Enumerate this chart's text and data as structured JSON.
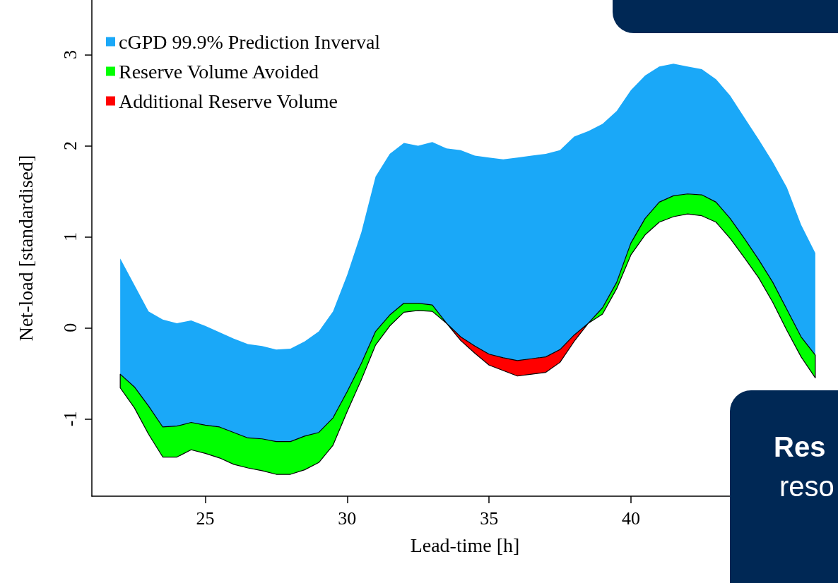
{
  "chart_data": {
    "type": "area",
    "xlabel": "Lead-time [h]",
    "ylabel": "Net-load [standardised]",
    "x": [
      22,
      22.5,
      23,
      23.5,
      24,
      24.5,
      25,
      25.5,
      26,
      26.5,
      27,
      27.5,
      28,
      28.5,
      29,
      29.5,
      30,
      30.5,
      31,
      31.5,
      32,
      32.5,
      33,
      33.5,
      34,
      34.5,
      35,
      35.5,
      36,
      36.5,
      37,
      37.5,
      38,
      38.5,
      39,
      39.5,
      40,
      40.5,
      41,
      41.5,
      42,
      42.5,
      43,
      43.5,
      44,
      44.5,
      45,
      45.5,
      46,
      46.5
    ],
    "xlim": [
      21,
      47.3
    ],
    "xticks": [
      25,
      30,
      35,
      40
    ],
    "ylim": [
      -1.85,
      3.6
    ],
    "yticks": [
      -1,
      0,
      1,
      2,
      3
    ],
    "legend": "top left",
    "grid": false,
    "series": [
      {
        "name": "cGPD 99.9% Prediction Inverval",
        "color": "#1aa8f8",
        "values": [
          null,
          null,
          null,
          null,
          null,
          null,
          null,
          null,
          null,
          null,
          null,
          null,
          null,
          null,
          null,
          null,
          null,
          null,
          null,
          null,
          null,
          null,
          null,
          null,
          null,
          null,
          null,
          null,
          null,
          null,
          null,
          null,
          null,
          null,
          null,
          null,
          null,
          null,
          null,
          null,
          null,
          null,
          null,
          null,
          null,
          null,
          null,
          null,
          null,
          null
        ],
        "upper": [
          0.76,
          0.47,
          0.18,
          0.09,
          0.05,
          0.08,
          0.02,
          -0.05,
          -0.12,
          -0.18,
          -0.2,
          -0.24,
          -0.23,
          -0.15,
          -0.04,
          0.18,
          0.58,
          1.05,
          1.66,
          1.91,
          2.03,
          2,
          2.04,
          1.97,
          1.95,
          1.89,
          1.87,
          1.85,
          1.87,
          1.89,
          1.91,
          1.95,
          2.1,
          2.16,
          2.24,
          2.38,
          2.61,
          2.77,
          2.87,
          2.9,
          2.87,
          2.84,
          2.73,
          2.55,
          2.31,
          2.07,
          1.82,
          1.54,
          1.13,
          0.82
        ],
        "lower": [
          -0.51,
          -0.65,
          -0.86,
          -1.09,
          -1.08,
          -1.04,
          -1.07,
          -1.09,
          -1.15,
          -1.21,
          -1.22,
          -1.25,
          -1.25,
          -1.19,
          -1.15,
          -0.99,
          -0.7,
          -0.39,
          -0.04,
          0.14,
          0.27,
          0.27,
          0.25,
          0.05,
          -0.1,
          -0.2,
          -0.29,
          -0.33,
          -0.36,
          -0.34,
          -0.32,
          -0.24,
          -0.08,
          0.05,
          0.22,
          0.5,
          0.93,
          1.2,
          1.38,
          1.45,
          1.47,
          1.46,
          1.38,
          1.2,
          0.98,
          0.75,
          0.5,
          0.2,
          -0.1,
          -0.3
        ]
      },
      {
        "name": "Reserve Volume Avoided",
        "color": "#00ff00",
        "values": [
          null,
          null,
          null,
          null,
          null,
          null,
          null,
          null,
          null,
          null,
          null,
          null,
          null,
          null,
          null,
          null,
          null,
          null,
          null,
          null,
          null,
          null,
          null,
          null,
          null,
          null,
          null,
          null,
          null,
          null,
          null,
          null,
          null,
          null,
          null,
          null,
          null,
          null,
          null,
          null,
          null,
          null,
          null,
          null,
          null,
          null,
          null,
          null,
          null,
          null
        ],
        "upper": [
          -0.51,
          -0.65,
          -0.86,
          -1.09,
          -1.08,
          -1.04,
          -1.07,
          -1.09,
          -1.15,
          -1.21,
          -1.22,
          -1.25,
          -1.25,
          -1.19,
          -1.15,
          -0.99,
          -0.7,
          -0.39,
          -0.04,
          0.14,
          0.27,
          0.27,
          0.25,
          0.05,
          null,
          null,
          null,
          null,
          null,
          null,
          null,
          null,
          null,
          0.05,
          0.22,
          0.5,
          0.93,
          1.2,
          1.38,
          1.45,
          1.47,
          1.46,
          1.38,
          1.2,
          0.98,
          0.75,
          0.5,
          0.2,
          -0.1,
          -0.3
        ],
        "lower": [
          -0.66,
          -0.88,
          -1.17,
          -1.42,
          -1.42,
          -1.34,
          -1.38,
          -1.43,
          -1.5,
          -1.54,
          -1.57,
          -1.61,
          -1.61,
          -1.56,
          -1.48,
          -1.29,
          -0.92,
          -0.57,
          -0.19,
          0.02,
          0.17,
          0.19,
          0.18,
          0.05,
          null,
          null,
          null,
          null,
          null,
          null,
          null,
          null,
          null,
          0.05,
          0.15,
          0.43,
          0.8,
          1.02,
          1.16,
          1.22,
          1.25,
          1.23,
          1.16,
          0.98,
          0.77,
          0.55,
          0.28,
          -0.03,
          -0.32,
          -0.55
        ]
      },
      {
        "name": "Additional Reserve Volume",
        "color": "#ff0000",
        "values": [
          null,
          null,
          null,
          null,
          null,
          null,
          null,
          null,
          null,
          null,
          null,
          null,
          null,
          null,
          null,
          null,
          null,
          null,
          null,
          null,
          null,
          null,
          null,
          null,
          null,
          null,
          null,
          null,
          null,
          null,
          null,
          null,
          null,
          null,
          null,
          null,
          null,
          null,
          null,
          null,
          null,
          null,
          null,
          null,
          null,
          null,
          null,
          null,
          null,
          null
        ],
        "upper": [
          null,
          null,
          null,
          null,
          null,
          null,
          null,
          null,
          null,
          null,
          null,
          null,
          null,
          null,
          null,
          null,
          null,
          null,
          null,
          null,
          null,
          null,
          null,
          0.05,
          -0.1,
          -0.2,
          -0.29,
          -0.33,
          -0.36,
          -0.34,
          -0.32,
          -0.24,
          -0.08,
          0.05,
          null,
          null,
          null,
          null,
          null,
          null,
          null,
          null,
          null,
          null,
          null,
          null,
          null,
          null,
          null,
          null
        ],
        "lower": [
          null,
          null,
          null,
          null,
          null,
          null,
          null,
          null,
          null,
          null,
          null,
          null,
          null,
          null,
          null,
          null,
          null,
          null,
          null,
          null,
          null,
          null,
          null,
          0.05,
          -0.14,
          -0.28,
          -0.41,
          -0.47,
          -0.53,
          -0.51,
          -0.49,
          -0.38,
          -0.15,
          0.05,
          null,
          null,
          null,
          null,
          null,
          null,
          null,
          null,
          null,
          null,
          null,
          null,
          null,
          null,
          null,
          null
        ]
      }
    ],
    "annotations": [
      "Res",
      "reso"
    ]
  }
}
